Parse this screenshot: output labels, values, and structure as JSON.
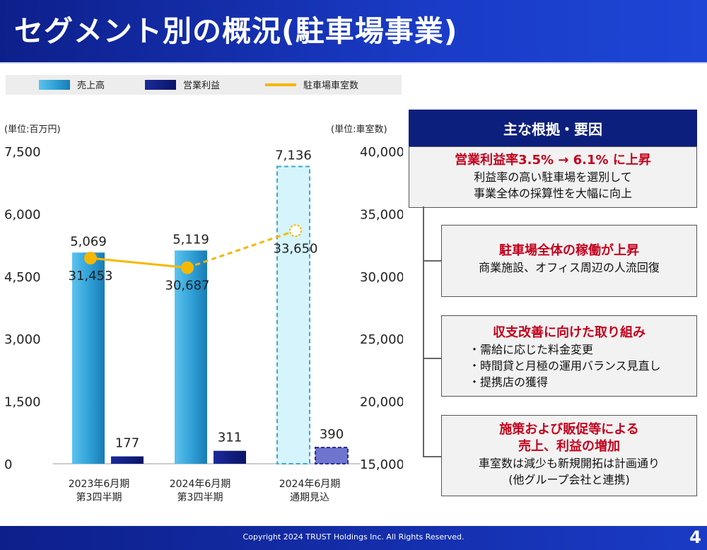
{
  "slide": {
    "title": "セグメント別の概況(駐車場事業)",
    "copyright": "Copyright 2024 TRUST Holdings Inc. All Rights Reserved.",
    "page_number": "4"
  },
  "chart_data": {
    "type": "bar",
    "title": "",
    "categories": [
      [
        "2023年6月期",
        "第3四半期"
      ],
      [
        "2024年6月期",
        "第3四半期"
      ],
      [
        "2024年6月期",
        "通期見込"
      ]
    ],
    "legend_position": "top-left",
    "left_axis": {
      "unit_label": "(単位:百万円)",
      "range": [
        0,
        7500
      ],
      "ticks": [
        "0",
        "1,500",
        "3,000",
        "4,500",
        "6,000",
        "7,500"
      ]
    },
    "right_axis": {
      "unit_label": "(単位:車室数)",
      "range": [
        15000,
        40000
      ],
      "ticks": [
        "15,000",
        "20,000",
        "25,000",
        "30,000",
        "35,000",
        "40,000"
      ]
    },
    "series": [
      {
        "name": "売上高",
        "type": "bar",
        "axis": "left",
        "color": "#2e9fd6",
        "values": [
          5069,
          5119,
          7136
        ],
        "labels": [
          "5,069",
          "5,119",
          "7,136"
        ],
        "forecast": [
          false,
          false,
          true
        ]
      },
      {
        "name": "営業利益",
        "type": "bar",
        "axis": "left",
        "color": "#0c1a7a",
        "values": [
          177,
          311,
          390
        ],
        "labels": [
          "177",
          "311",
          "390"
        ],
        "forecast": [
          false,
          false,
          true
        ]
      },
      {
        "name": "駐車場車室数",
        "type": "line",
        "axis": "right",
        "color": "#f5b800",
        "values": [
          31453,
          30687,
          33650
        ],
        "labels": [
          "31,453",
          "30,687",
          "33,650"
        ],
        "forecast": [
          false,
          false,
          true
        ]
      }
    ],
    "grid": false
  },
  "reasons": {
    "header": "主な根拠・要因",
    "items": [
      {
        "title": "営業利益率3.5% → 6.1% に上昇",
        "lines": [
          "利益率の高い駐車場を選別して",
          "事業全体の採算性を大幅に向上"
        ]
      },
      {
        "title": "駐車場全体の稼働が上昇",
        "lines": [
          "商業施設、オフィス周辺の人流回復"
        ]
      },
      {
        "title": "収支改善に向けた取り組み",
        "bullets": [
          "・需給に応じた料金変更",
          "・時間貸と月極の運用バランス見直し",
          "・提携店の獲得"
        ]
      },
      {
        "title_lines": [
          "施策および販促等による",
          "売上、利益の増加"
        ],
        "lines": [
          "車室数は減少も新規開拓は計画通り",
          "(他グループ会社と連携)"
        ]
      }
    ]
  }
}
